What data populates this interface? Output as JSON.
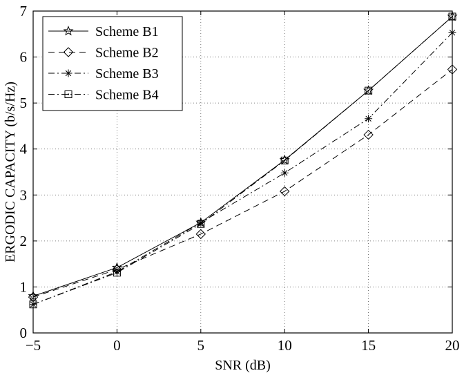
{
  "chart_data": {
    "type": "line",
    "xlabel": "SNR (dB)",
    "ylabel": "ERGODIC CAPACITY (b/s/Hz)",
    "xlim": [
      -5,
      20
    ],
    "ylim": [
      0,
      7
    ],
    "x": [
      -5,
      0,
      5,
      10,
      15,
      20
    ],
    "xticks": [
      "−5",
      "0",
      "5",
      "10",
      "15",
      "20"
    ],
    "yticks": [
      "0",
      "1",
      "2",
      "3",
      "4",
      "5",
      "6",
      "7"
    ],
    "grid": true,
    "legend_position": "top-left",
    "series": [
      {
        "name": "Scheme B1",
        "values": [
          0.8,
          1.42,
          2.4,
          3.76,
          5.27,
          6.88
        ],
        "line_style": "solid",
        "marker": "star"
      },
      {
        "name": "Scheme B2",
        "values": [
          0.78,
          1.38,
          2.15,
          3.08,
          4.31,
          5.73
        ],
        "line_style": "dashed",
        "marker": "diamond"
      },
      {
        "name": "Scheme B3",
        "values": [
          0.62,
          1.33,
          2.4,
          3.48,
          4.66,
          6.53
        ],
        "line_style": "dashdot",
        "marker": "asterisk"
      },
      {
        "name": "Scheme B4",
        "values": [
          0.62,
          1.31,
          2.37,
          3.75,
          5.27,
          6.88
        ],
        "line_style": "dashdot",
        "marker": "square-dot"
      }
    ]
  }
}
